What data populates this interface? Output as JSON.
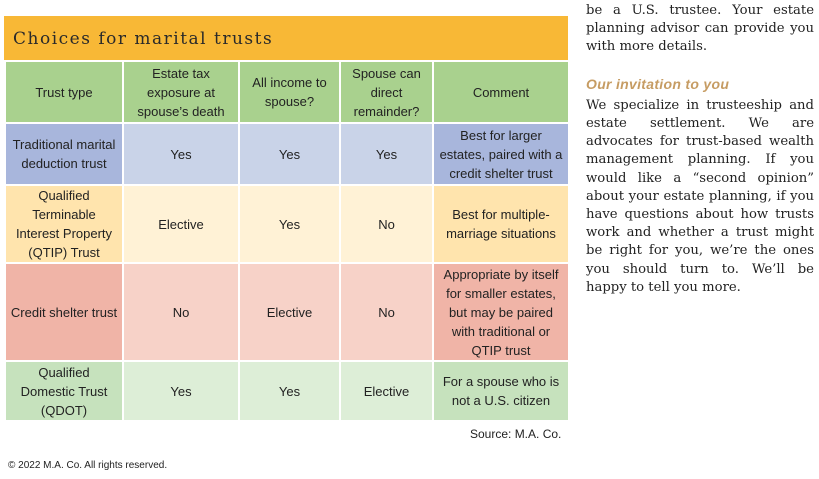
{
  "table": {
    "title": "Choices for marital trusts",
    "headers": [
      "Trust type",
      "Estate tax exposure at spouse’s death",
      "All income to spouse?",
      "Spouse can direct remainder?",
      "Comment"
    ],
    "rows": [
      [
        "Traditional marital deduction trust",
        "Yes",
        "Yes",
        "Yes",
        "Best for larger estates, paired with a credit shelter trust"
      ],
      [
        "Qualified Terminable Interest Property (QTIP) Trust",
        "Elective",
        "Yes",
        "No",
        "Best for multiple-marriage situations"
      ],
      [
        "Credit shelter trust",
        "No",
        "Elective",
        "No",
        "Appropriate by itself for smaller estates, but may be paired with traditional or QTIP trust"
      ],
      [
        "Qualified Domestic Trust (QDOT)",
        "Yes",
        "Yes",
        "Elective",
        "For a spouse who is not a U.S. citizen"
      ]
    ],
    "source": "Source: M.A. Co."
  },
  "copyright": "© 2022 M.A. Co. All rights reserved.",
  "sidebar": {
    "intro": "be a U.S. trustee. Your estate planning advisor can provide you with more details.",
    "heading": "Our invitation to you",
    "body": "We specialize in trusteeship and estate settlement. We are advocates for trust-based wealth management planning. If you would like a “second opinion” about your estate planning, if you have questions about how trusts work and whether a trust might be right for you, we’re the ones you should turn to. We’ll be happy to tell you more."
  }
}
